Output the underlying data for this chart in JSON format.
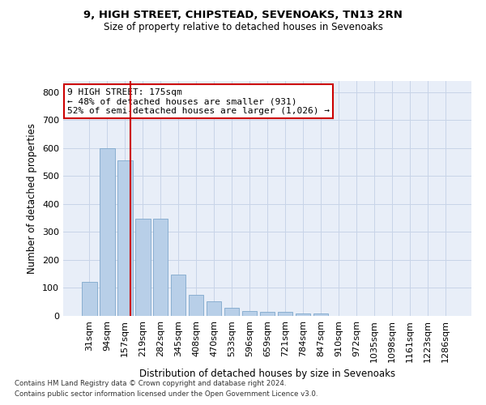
{
  "title1": "9, HIGH STREET, CHIPSTEAD, SEVENOAKS, TN13 2RN",
  "title2": "Size of property relative to detached houses in Sevenoaks",
  "xlabel": "Distribution of detached houses by size in Sevenoaks",
  "ylabel": "Number of detached properties",
  "categories": [
    "31sqm",
    "94sqm",
    "157sqm",
    "219sqm",
    "282sqm",
    "345sqm",
    "408sqm",
    "470sqm",
    "533sqm",
    "596sqm",
    "659sqm",
    "721sqm",
    "784sqm",
    "847sqm",
    "910sqm",
    "972sqm",
    "1035sqm",
    "1098sqm",
    "1161sqm",
    "1223sqm",
    "1286sqm"
  ],
  "values": [
    122,
    601,
    557,
    347,
    347,
    148,
    75,
    52,
    30,
    18,
    15,
    15,
    8,
    8,
    0,
    0,
    0,
    0,
    0,
    0,
    0
  ],
  "bar_color": "#b8cfe8",
  "bar_edge_color": "#7fa8cc",
  "vline_color": "#cc0000",
  "vline_pos": 2.3,
  "annotation_text": "9 HIGH STREET: 175sqm\n← 48% of detached houses are smaller (931)\n52% of semi-detached houses are larger (1,026) →",
  "annotation_box_color": "#ffffff",
  "annotation_box_edge": "#cc0000",
  "ylim": [
    0,
    840
  ],
  "yticks": [
    0,
    100,
    200,
    300,
    400,
    500,
    600,
    700,
    800
  ],
  "grid_color": "#c8d4e8",
  "bg_color": "#e8eef8",
  "footer1": "Contains HM Land Registry data © Crown copyright and database right 2024.",
  "footer2": "Contains public sector information licensed under the Open Government Licence v3.0."
}
